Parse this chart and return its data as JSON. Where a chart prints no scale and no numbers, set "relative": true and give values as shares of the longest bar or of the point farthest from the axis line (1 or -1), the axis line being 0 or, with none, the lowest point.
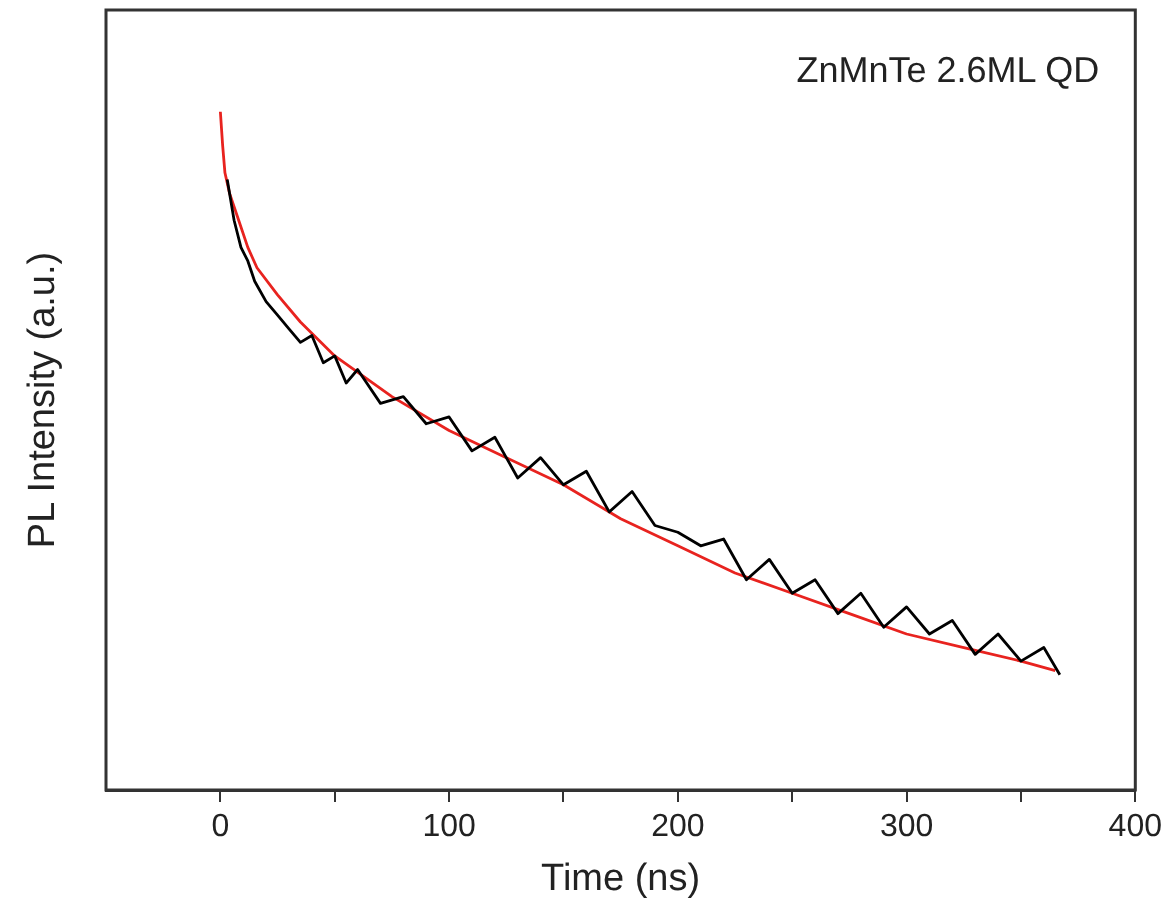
{
  "chart_data": {
    "type": "line",
    "xlabel": "Time (ns)",
    "ylabel": "PL Intensity (a.u.)",
    "annotations": [
      "ZnMnTe 2.6ML QD"
    ],
    "relative": true,
    "xlim": [
      -50,
      400
    ],
    "xticks": [
      0,
      {
        "value": 50,
        "label": null
      },
      100,
      {
        "value": 150,
        "label": null
      },
      200,
      {
        "value": 250,
        "label": null
      },
      300,
      {
        "value": 350,
        "label": null
      },
      400
    ],
    "grid": false,
    "legend": false,
    "marker": "none",
    "line_style": "solid",
    "series": [
      {
        "color": "#000000",
        "x": [
          3,
          6,
          9,
          12,
          15,
          20,
          25,
          30,
          35,
          40,
          45,
          50,
          55,
          60,
          70,
          80,
          90,
          100,
          110,
          120,
          130,
          140,
          150,
          160,
          170,
          180,
          190,
          200,
          210,
          220,
          230,
          240,
          250,
          260,
          270,
          280,
          290,
          300,
          310,
          320,
          330,
          340,
          350,
          360,
          367
        ],
        "values": [
          0.9,
          0.84,
          0.8,
          0.78,
          0.75,
          0.72,
          0.7,
          0.68,
          0.66,
          0.67,
          0.63,
          0.64,
          0.6,
          0.62,
          0.57,
          0.58,
          0.54,
          0.55,
          0.5,
          0.52,
          0.46,
          0.49,
          0.45,
          0.47,
          0.41,
          0.44,
          0.39,
          0.38,
          0.36,
          0.37,
          0.31,
          0.34,
          0.29,
          0.31,
          0.26,
          0.29,
          0.24,
          0.27,
          0.23,
          0.25,
          0.2,
          0.23,
          0.19,
          0.21,
          0.17
        ]
      },
      {
        "color": "#e8231f",
        "x": [
          0,
          1,
          2,
          4,
          6,
          8,
          12,
          16,
          25,
          35,
          50,
          75,
          100,
          125,
          150,
          175,
          200,
          225,
          250,
          275,
          300,
          325,
          350,
          365
        ],
        "values": [
          1.0,
          0.95,
          0.91,
          0.88,
          0.86,
          0.84,
          0.8,
          0.77,
          0.73,
          0.69,
          0.64,
          0.58,
          0.53,
          0.49,
          0.45,
          0.4,
          0.36,
          0.32,
          0.29,
          0.26,
          0.23,
          0.21,
          0.19,
          0.176
        ]
      }
    ]
  }
}
